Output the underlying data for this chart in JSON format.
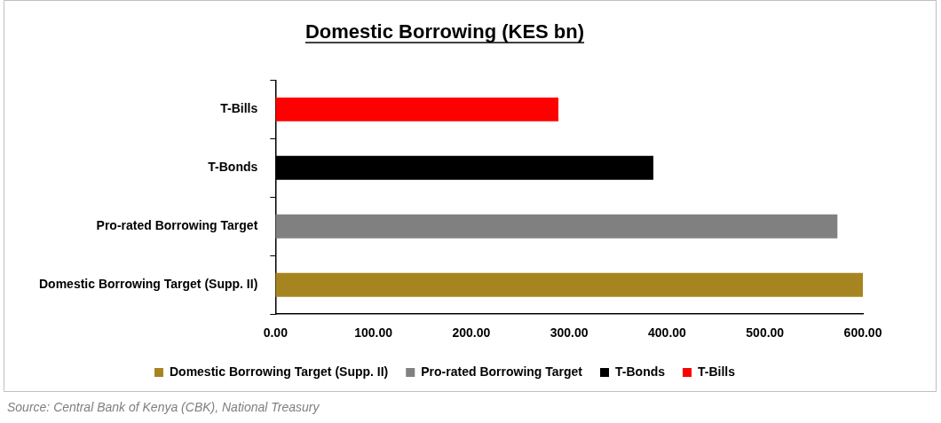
{
  "chart_data": {
    "type": "bar",
    "orientation": "horizontal",
    "title": "Domestic Borrowing (KES bn)",
    "categories": [
      "T-Bills",
      "T-Bonds",
      "Pro-rated Borrowing Target",
      "Domestic Borrowing Target (Supp. II)"
    ],
    "series": [
      {
        "name": "Domestic Borrowing Target (Supp. II)",
        "color": "#a68520",
        "values": [
          null,
          null,
          null,
          600
        ]
      },
      {
        "name": "Pro-rated Borrowing Target",
        "color": "#808080",
        "values": [
          null,
          null,
          574,
          null
        ]
      },
      {
        "name": "T-Bonds",
        "color": "#000000",
        "values": [
          null,
          386,
          null,
          null
        ]
      },
      {
        "name": "T-Bills",
        "color": "#ff0000",
        "values": [
          289,
          null,
          null,
          null
        ]
      }
    ],
    "xlim": [
      0,
      600
    ],
    "xticks": [
      {
        "value": 0,
        "label": "0.00"
      },
      {
        "value": 100,
        "label": "100.00"
      },
      {
        "value": 200,
        "label": "200.00"
      },
      {
        "value": 300,
        "label": "300.00"
      },
      {
        "value": 400,
        "label": "400.00"
      },
      {
        "value": 500,
        "label": "500.00"
      },
      {
        "value": 600,
        "label": "600.00"
      }
    ],
    "grid": false,
    "legend": "bottom",
    "annotations": [
      "Source: Central Bank of Kenya (CBK), National Treasury"
    ]
  }
}
